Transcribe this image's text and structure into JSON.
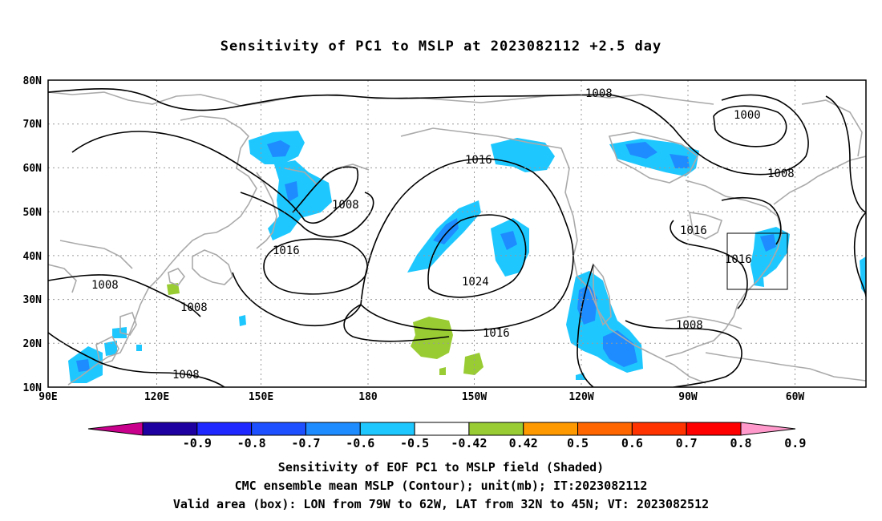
{
  "title": "Sensitivity of PC1 to MSLP at 2023082112 +2.5 day",
  "lat_labels": [
    "80N",
    "70N",
    "60N",
    "50N",
    "40N",
    "30N",
    "20N",
    "10N"
  ],
  "lon_labels": [
    "90E",
    "120E",
    "150E",
    "180",
    "150W",
    "120W",
    "90W",
    "60W"
  ],
  "contour_labels": [
    "1008",
    "1000",
    "1008",
    "1016",
    "1008",
    "1016",
    "1024",
    "1016",
    "1016",
    "1016",
    "1008",
    "1008",
    "1008",
    "1008"
  ],
  "colorbar": {
    "labels": [
      "-0.9",
      "-0.8",
      "-0.7",
      "-0.6",
      "-0.5",
      "-0.42",
      "0.42",
      "0.5",
      "0.6",
      "0.7",
      "0.8",
      "0.9"
    ],
    "colors": [
      "#c8008c",
      "#1e00a0",
      "#1e28ff",
      "#1e50ff",
      "#1e8cff",
      "#1ec8ff",
      "#ffffff",
      "#99cc33",
      "#ff9900",
      "#ff6600",
      "#ff3300",
      "#ff0000",
      "#ff99cc"
    ]
  },
  "colors": {
    "neg_strong": "#1e50ff",
    "neg_mid": "#1e8cff",
    "neg_weak": "#1ec8ff",
    "pos_weak": "#99cc33",
    "coast": "#aaaaaa",
    "contour": "#000000"
  },
  "footer": {
    "line1": "Sensitivity of EOF PC1 to MSLP field (Shaded)",
    "line2": "CMC ensemble mean MSLP (Contour); unit(mb); IT:2023082112",
    "line3": "Valid area (box): LON from 79W to 62W, LAT from 32N to 45N; VT: 2023082512"
  }
}
